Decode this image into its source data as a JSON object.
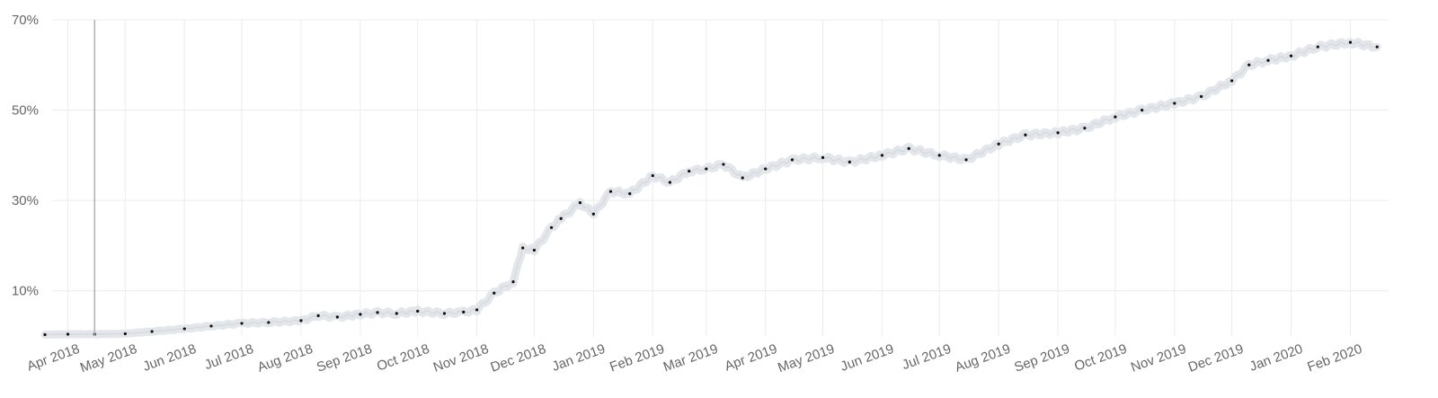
{
  "chart_data": {
    "type": "line",
    "title": "",
    "xlabel": "",
    "ylabel": "",
    "ylim": [
      0,
      70
    ],
    "yticks": [
      10,
      30,
      50,
      70
    ],
    "ytick_labels": [
      "10%",
      "30%",
      "50%",
      "70%"
    ],
    "grid": true,
    "x_tick_labels": [
      "Apr 2018",
      "May 2018",
      "Jun 2018",
      "Jul 2018",
      "Aug 2018",
      "Sep 2018",
      "Oct 2018",
      "Nov 2018",
      "Dec 2018",
      "Jan 2019",
      "Feb 2019",
      "Mar 2019",
      "Apr 2019",
      "May 2019",
      "Jun 2019",
      "Jul 2019",
      "Aug 2019",
      "Sep 2019",
      "Oct 2019",
      "Nov 2019",
      "Dec 2019",
      "Jan 2020",
      "Feb 2020"
    ],
    "cursor_x": "2018-04-15",
    "series": [
      {
        "x": [
          "2018-03-20",
          "2018-04-01",
          "2018-04-15",
          "2018-05-01",
          "2018-05-15",
          "2018-06-01",
          "2018-06-15",
          "2018-07-01",
          "2018-07-15",
          "2018-08-01",
          "2018-08-10",
          "2018-08-20",
          "2018-09-01",
          "2018-09-10",
          "2018-09-20",
          "2018-10-01",
          "2018-10-15",
          "2018-10-25",
          "2018-11-01",
          "2018-11-10",
          "2018-11-20",
          "2018-11-25",
          "2018-12-01",
          "2018-12-10",
          "2018-12-15",
          "2018-12-25",
          "2019-01-01",
          "2019-01-10",
          "2019-01-20",
          "2019-02-01",
          "2019-02-10",
          "2019-02-20",
          "2019-03-01",
          "2019-03-10",
          "2019-03-20",
          "2019-04-01",
          "2019-04-15",
          "2019-05-01",
          "2019-05-15",
          "2019-06-01",
          "2019-06-15",
          "2019-07-01",
          "2019-07-15",
          "2019-08-01",
          "2019-08-15",
          "2019-09-01",
          "2019-09-15",
          "2019-10-01",
          "2019-10-15",
          "2019-11-01",
          "2019-11-15",
          "2019-12-01",
          "2019-12-10",
          "2019-12-20",
          "2020-01-01",
          "2020-01-15",
          "2020-02-01",
          "2020-02-15"
        ],
        "values": [
          0.3,
          0.4,
          0.4,
          0.5,
          1.0,
          1.6,
          2.2,
          2.8,
          3.0,
          3.4,
          4.5,
          4.2,
          4.8,
          5.2,
          5.0,
          5.5,
          5.0,
          5.3,
          5.8,
          9.5,
          12.0,
          19.5,
          19.0,
          24.0,
          26.0,
          29.5,
          27.0,
          32.0,
          31.5,
          35.5,
          34.0,
          36.5,
          37.0,
          38.0,
          35.0,
          37.0,
          39.0,
          39.5,
          38.5,
          40.0,
          41.5,
          40.0,
          39.0,
          42.5,
          44.5,
          45.0,
          46.0,
          48.5,
          50.0,
          51.5,
          53.0,
          56.5,
          60.0,
          61.0,
          62.0,
          64.0,
          65.0,
          64.0
        ]
      }
    ]
  }
}
